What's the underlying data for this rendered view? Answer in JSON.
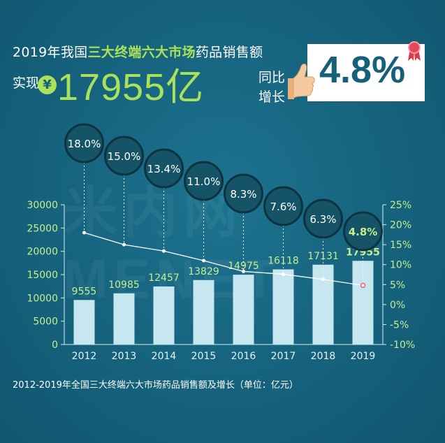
{
  "headline": {
    "line1_prefix": "2019年我国",
    "line1_highlight": "三大终端六大市场",
    "line1_suffix": "药品销售额",
    "line2_prefix": "实现",
    "yen_symbol": "¥",
    "amount": "17955亿",
    "yoy_line1": "同比",
    "yoy_line2": "增长",
    "growth": "4.8%"
  },
  "watermark": "米内网MENET",
  "caption": "2012-2019年全国三大终端六大市场药品销售额及增长（单位：亿元）",
  "colors": {
    "background": "#17607a",
    "accent_green": "#a9e15a",
    "bar": "#c6e6f0",
    "label_green": "#c5ef8e",
    "growth_line": "#ffffff",
    "last_point": "#f25a6b"
  },
  "chart_data": {
    "type": "bar",
    "categories": [
      "2012",
      "2013",
      "2014",
      "2015",
      "2016",
      "2017",
      "2018",
      "2019"
    ],
    "series": [
      {
        "values": [
          9555,
          10985,
          12457,
          13829,
          14975,
          16118,
          17131,
          17955
        ],
        "axis": "left"
      },
      {
        "type": "line",
        "values": [
          18.0,
          15.0,
          13.4,
          11.0,
          8.3,
          7.6,
          6.3,
          4.8
        ],
        "axis": "right",
        "unit": "%"
      }
    ],
    "bar_labels": [
      "9555",
      "10985",
      "12457",
      "13829",
      "14975",
      "16118",
      "17131",
      "17955"
    ],
    "growth_labels": [
      "18.0%",
      "15.0%",
      "13.4%",
      "11.0%",
      "8.3%",
      "7.6%",
      "6.3%",
      "4.8%"
    ],
    "ylim_left": [
      0,
      30000
    ],
    "yticks_left": [
      0,
      5000,
      10000,
      15000,
      20000,
      25000,
      30000
    ],
    "ytick_labels_left": [
      "0",
      "5000",
      "10000",
      "15000",
      "20000",
      "25000",
      "30000"
    ],
    "ylim_right": [
      -10,
      25
    ],
    "yticks_right": [
      -10,
      -5,
      0,
      5,
      10,
      15,
      20,
      25
    ],
    "ytick_labels_right": [
      "-10%",
      "-5%",
      "0%",
      "5%",
      "10%",
      "15%",
      "20%",
      "25%"
    ],
    "grid": false,
    "legend": "none"
  }
}
